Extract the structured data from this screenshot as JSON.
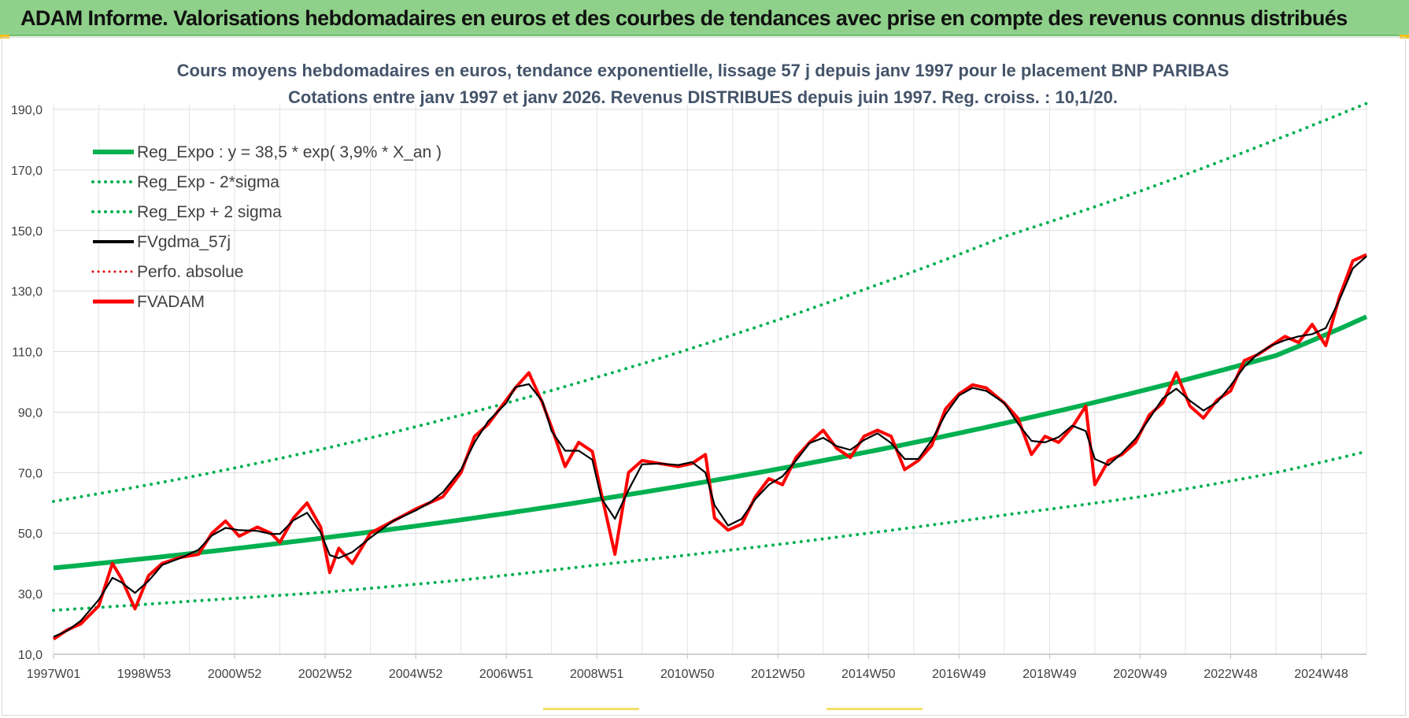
{
  "banner": {
    "title": "ADAM Informe. Valorisations hebdomadaires en euros et des courbes de tendances avec prise en compte des revenus connus distribués"
  },
  "colors": {
    "banner_bg": "#8fd18a",
    "regression": "#00b050",
    "smoothing": "#000000",
    "fvadam": "#ff0000",
    "perfo": "#e00000"
  },
  "chart_data": {
    "type": "line",
    "title": [
      "Cours moyens hebdomadaires en euros, tendance exponentielle, lissage 57 j depuis janv 1997 pour le placement BNP PARIBAS",
      "Cotations entre janv 1997 et janv 2026. Revenus DISTRIBUES depuis juin 1997. Reg. croiss. : 10,1/20."
    ],
    "xlabel": "",
    "ylabel": "",
    "x_range": [
      1997.0,
      2026.0
    ],
    "ylim": [
      10,
      190
    ],
    "y_ticks": [
      "10,0",
      "30,0",
      "50,0",
      "70,0",
      "90,0",
      "110,0",
      "130,0",
      "150,0",
      "170,0",
      "190,0"
    ],
    "y_tick_values": [
      10,
      30,
      50,
      70,
      90,
      110,
      130,
      150,
      170,
      190
    ],
    "x_ticks": [
      "1997W01",
      "1998W53",
      "2000W52",
      "2002W52",
      "2004W52",
      "2006W51",
      "2008W51",
      "2010W50",
      "2012W50",
      "2014W50",
      "2016W49",
      "2018W49",
      "2020W49",
      "2022W48",
      "2024W48"
    ],
    "x_tick_values": [
      1997.0,
      1999.0,
      2001.0,
      2003.0,
      2005.0,
      2007.0,
      2009.0,
      2011.0,
      2013.0,
      2015.0,
      2017.0,
      2019.0,
      2021.0,
      2023.0,
      2025.0
    ],
    "legend": [
      {
        "label": "Reg_Expo : y = 38,5 * exp( 3,9% *  X_an )",
        "style": "solid-green"
      },
      {
        "label": "Reg_Exp - 2*sigma",
        "style": "dotted-green"
      },
      {
        "label": "Reg_Exp + 2 sigma",
        "style": "dotted-green"
      },
      {
        "label": "FVgdma_57j",
        "style": "solid-black"
      },
      {
        "label": "Perfo. absolue",
        "style": "dotted-red"
      },
      {
        "label": "FVADAM",
        "style": "solid-red"
      }
    ],
    "series": [
      {
        "name": "Reg_Expo : y = 38,5 * exp( 3,9% *  X_an )",
        "x": [
          1997.0,
          2000.0,
          2003.0,
          2006.0,
          2009.0,
          2012.0,
          2015.0,
          2018.0,
          2021.0,
          2024.0,
          2026.0
        ],
        "values": [
          38.5,
          43.2,
          48.5,
          54.4,
          61.1,
          68.5,
          76.9,
          86.3,
          96.9,
          108.7,
          121.5
        ]
      },
      {
        "name": "Reg_Exp + 2 sigma",
        "x": [
          1997.0,
          2000.0,
          2003.0,
          2006.0,
          2009.0,
          2012.0,
          2015.0,
          2018.0,
          2021.0,
          2024.0,
          2026.0
        ],
        "values": [
          60.5,
          68.5,
          78.0,
          89.0,
          101.5,
          115.5,
          131.0,
          148.0,
          163.0,
          180.0,
          192.0
        ]
      },
      {
        "name": "Reg_Exp - 2*sigma",
        "x": [
          1997.0,
          2000.0,
          2003.0,
          2006.0,
          2009.0,
          2012.0,
          2015.0,
          2018.0,
          2021.0,
          2024.0,
          2026.0
        ],
        "values": [
          24.5,
          27.5,
          30.5,
          34.5,
          39.5,
          44.5,
          50.0,
          56.0,
          62.0,
          70.0,
          77.0
        ]
      },
      {
        "name": "FVADAM",
        "x": [
          1997.0,
          1997.3,
          1997.6,
          1998.0,
          1998.3,
          1998.5,
          1998.8,
          1999.1,
          1999.4,
          1999.8,
          2000.2,
          2000.5,
          2000.8,
          2001.1,
          2001.5,
          2001.8,
          2002.0,
          2002.3,
          2002.6,
          2002.9,
          2003.1,
          2003.3,
          2003.6,
          2004.0,
          2004.5,
          2005.0,
          2005.3,
          2005.6,
          2006.0,
          2006.3,
          2006.6,
          2007.0,
          2007.2,
          2007.5,
          2007.8,
          2008.0,
          2008.3,
          2008.6,
          2008.9,
          2009.1,
          2009.4,
          2009.7,
          2010.0,
          2010.4,
          2010.8,
          2011.1,
          2011.4,
          2011.6,
          2011.9,
          2012.2,
          2012.5,
          2012.8,
          2013.1,
          2013.4,
          2013.7,
          2014.0,
          2014.3,
          2014.6,
          2014.9,
          2015.2,
          2015.5,
          2015.8,
          2016.1,
          2016.4,
          2016.7,
          2017.0,
          2017.3,
          2017.6,
          2018.0,
          2018.3,
          2018.6,
          2018.9,
          2019.2,
          2019.5,
          2019.8,
          2020.0,
          2020.3,
          2020.6,
          2020.9,
          2021.2,
          2021.5,
          2021.8,
          2022.1,
          2022.4,
          2022.7,
          2023.0,
          2023.3,
          2023.6,
          2023.9,
          2024.2,
          2024.5,
          2024.8,
          2025.1,
          2025.4,
          2025.7,
          2026.0
        ],
        "values": [
          15,
          18,
          20,
          26,
          40,
          35,
          25,
          36,
          40,
          42,
          43,
          50,
          54,
          49,
          52,
          50,
          47,
          55,
          60,
          52,
          37,
          45,
          40,
          50,
          54,
          58,
          60,
          62,
          70,
          82,
          86,
          94,
          98,
          103,
          93,
          85,
          72,
          80,
          77,
          63,
          43,
          70,
          74,
          73,
          72,
          73,
          76,
          55,
          51,
          53,
          62,
          68,
          66,
          75,
          80,
          84,
          78,
          75,
          82,
          84,
          82,
          71,
          74,
          79,
          91,
          96,
          99,
          98,
          93,
          88,
          76,
          82,
          80,
          85,
          92,
          66,
          74,
          76,
          80,
          89,
          93,
          103,
          92,
          88,
          94,
          97,
          107,
          109,
          112,
          115,
          113,
          119,
          112,
          128,
          140,
          142
        ]
      }
    ]
  }
}
